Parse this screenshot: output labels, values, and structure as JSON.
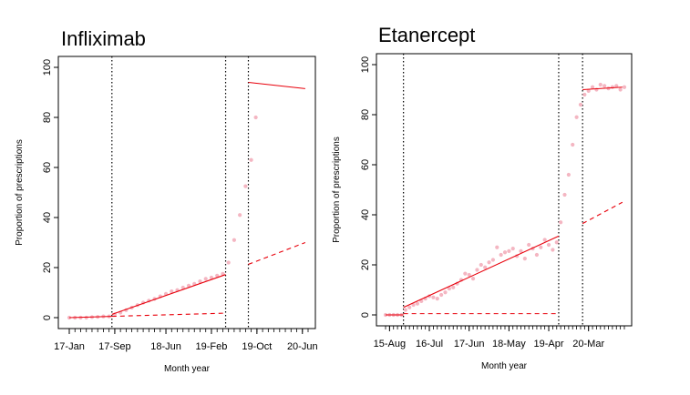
{
  "chart_data": [
    {
      "type": "scatter",
      "title": "Infliximab",
      "xlabel": "Month year",
      "ylabel": "Proportion of prescriptions",
      "ylim": [
        0,
        100
      ],
      "yticks": [
        0,
        20,
        40,
        60,
        80,
        100
      ],
      "xlim": [
        1,
        43
      ],
      "xticks": [
        {
          "pos": 1,
          "label": "17-Jan"
        },
        {
          "pos": 9,
          "label": "17-Sep"
        },
        {
          "pos": 18,
          "label": "18-Jun"
        },
        {
          "pos": 26,
          "label": "19-Feb"
        },
        {
          "pos": 34,
          "label": "19-Oct"
        },
        {
          "pos": 42,
          "label": "20-Jun"
        }
      ],
      "minor_ticks": [
        1,
        43
      ],
      "interruptions": [
        8.5,
        28.5,
        32.5
      ],
      "colors": {
        "fit": "#e8000b",
        "points": "#f4b6c2",
        "box": "#000000"
      },
      "points": [
        [
          1,
          0
        ],
        [
          2,
          0
        ],
        [
          3,
          0
        ],
        [
          4,
          0
        ],
        [
          5,
          0.2
        ],
        [
          6,
          0.3
        ],
        [
          7,
          0.5
        ],
        [
          8,
          0.5
        ],
        [
          9,
          1.3
        ],
        [
          10,
          2
        ],
        [
          11,
          3
        ],
        [
          12,
          4
        ],
        [
          13,
          5
        ],
        [
          14,
          6
        ],
        [
          15,
          6.8
        ],
        [
          16,
          7.5
        ],
        [
          17,
          8.5
        ],
        [
          18,
          9.5
        ],
        [
          19,
          10.5
        ],
        [
          20,
          11
        ],
        [
          21,
          12
        ],
        [
          22,
          12.8
        ],
        [
          23,
          13.5
        ],
        [
          24,
          14.5
        ],
        [
          25,
          15.5
        ],
        [
          26,
          16
        ],
        [
          27,
          16.8
        ],
        [
          28,
          17.5
        ],
        [
          29,
          22
        ],
        [
          30,
          31
        ],
        [
          31,
          41
        ],
        [
          32,
          52.5
        ],
        [
          33,
          63
        ],
        [
          33.8,
          80
        ]
      ],
      "series": [
        {
          "style": "solid",
          "segments": [
            [
              [
                1,
                0
              ],
              [
                8.5,
                0.5
              ]
            ],
            [
              [
                8.5,
                1.3
              ],
              [
                28.5,
                17.2
              ]
            ],
            [
              [
                32.5,
                94
              ],
              [
                42.5,
                91.5
              ]
            ]
          ]
        },
        {
          "style": "dashed",
          "segments": [
            [
              [
                8.5,
                0.5
              ],
              [
                28.5,
                1.8
              ]
            ],
            [
              [
                32.5,
                21.3
              ],
              [
                42.5,
                30
              ]
            ]
          ]
        }
      ]
    },
    {
      "type": "scatter",
      "title": "Etanercept",
      "xlabel": "Month year",
      "ylabel": "Proportion of prescriptions",
      "ylim": [
        0,
        100
      ],
      "yticks": [
        0,
        20,
        40,
        60,
        80,
        100
      ],
      "xlim": [
        1,
        61
      ],
      "xticks": [
        {
          "pos": 2,
          "label": "15-Aug"
        },
        {
          "pos": 12,
          "label": "16-Jul"
        },
        {
          "pos": 22,
          "label": "17-Jun"
        },
        {
          "pos": 32,
          "label": "18-May"
        },
        {
          "pos": 42,
          "label": "19-Apr"
        },
        {
          "pos": 52,
          "label": "20-Mar"
        }
      ],
      "minor_ticks": [
        1,
        61
      ],
      "interruptions": [
        5.5,
        44.5,
        50.5
      ],
      "colors": {
        "fit": "#e8000b",
        "points": "#f4b6c2",
        "box": "#000000"
      },
      "points": [
        [
          1,
          0
        ],
        [
          2,
          0
        ],
        [
          3,
          0
        ],
        [
          4,
          0
        ],
        [
          5,
          0
        ],
        [
          6,
          2
        ],
        [
          7,
          3
        ],
        [
          8,
          4
        ],
        [
          9,
          4.5
        ],
        [
          10,
          5.5
        ],
        [
          11,
          6.5
        ],
        [
          12,
          7.5
        ],
        [
          13,
          7
        ],
        [
          14,
          6.5
        ],
        [
          15,
          8
        ],
        [
          16,
          9
        ],
        [
          17,
          10.5
        ],
        [
          18,
          11
        ],
        [
          19,
          12.5
        ],
        [
          20,
          14
        ],
        [
          21,
          16.5
        ],
        [
          22,
          16
        ],
        [
          23,
          14.5
        ],
        [
          24,
          18
        ],
        [
          25,
          20
        ],
        [
          26,
          19
        ],
        [
          27,
          21
        ],
        [
          28,
          22
        ],
        [
          29,
          27
        ],
        [
          30,
          24
        ],
        [
          31,
          25
        ],
        [
          32,
          25.5
        ],
        [
          33,
          26.5
        ],
        [
          34,
          23.5
        ],
        [
          35,
          25.5
        ],
        [
          36,
          22.5
        ],
        [
          37,
          28
        ],
        [
          38,
          26.5
        ],
        [
          39,
          24
        ],
        [
          40,
          27
        ],
        [
          41,
          30
        ],
        [
          42,
          28
        ],
        [
          43,
          26
        ],
        [
          44,
          29
        ],
        [
          45,
          37
        ],
        [
          46,
          48
        ],
        [
          47,
          56
        ],
        [
          48,
          68
        ],
        [
          49,
          79
        ],
        [
          50,
          84
        ],
        [
          51,
          88
        ],
        [
          52,
          89.5
        ],
        [
          53,
          91
        ],
        [
          54,
          90
        ],
        [
          55,
          92
        ],
        [
          56,
          91.5
        ],
        [
          57,
          90.5
        ],
        [
          58,
          91
        ],
        [
          59,
          91.5
        ],
        [
          60,
          90
        ],
        [
          61,
          91
        ]
      ],
      "series": [
        {
          "style": "solid",
          "segments": [
            [
              [
                1,
                0
              ],
              [
                5.5,
                0
              ]
            ],
            [
              [
                5.5,
                3
              ],
              [
                44.5,
                31.5
              ]
            ],
            [
              [
                50.5,
                90
              ],
              [
                60.5,
                91
              ]
            ]
          ]
        },
        {
          "style": "dashed",
          "segments": [
            [
              [
                5.5,
                0.5
              ],
              [
                44.5,
                0.5
              ]
            ],
            [
              [
                50.5,
                36.5
              ],
              [
                60.5,
                45
              ]
            ]
          ]
        }
      ]
    }
  ]
}
